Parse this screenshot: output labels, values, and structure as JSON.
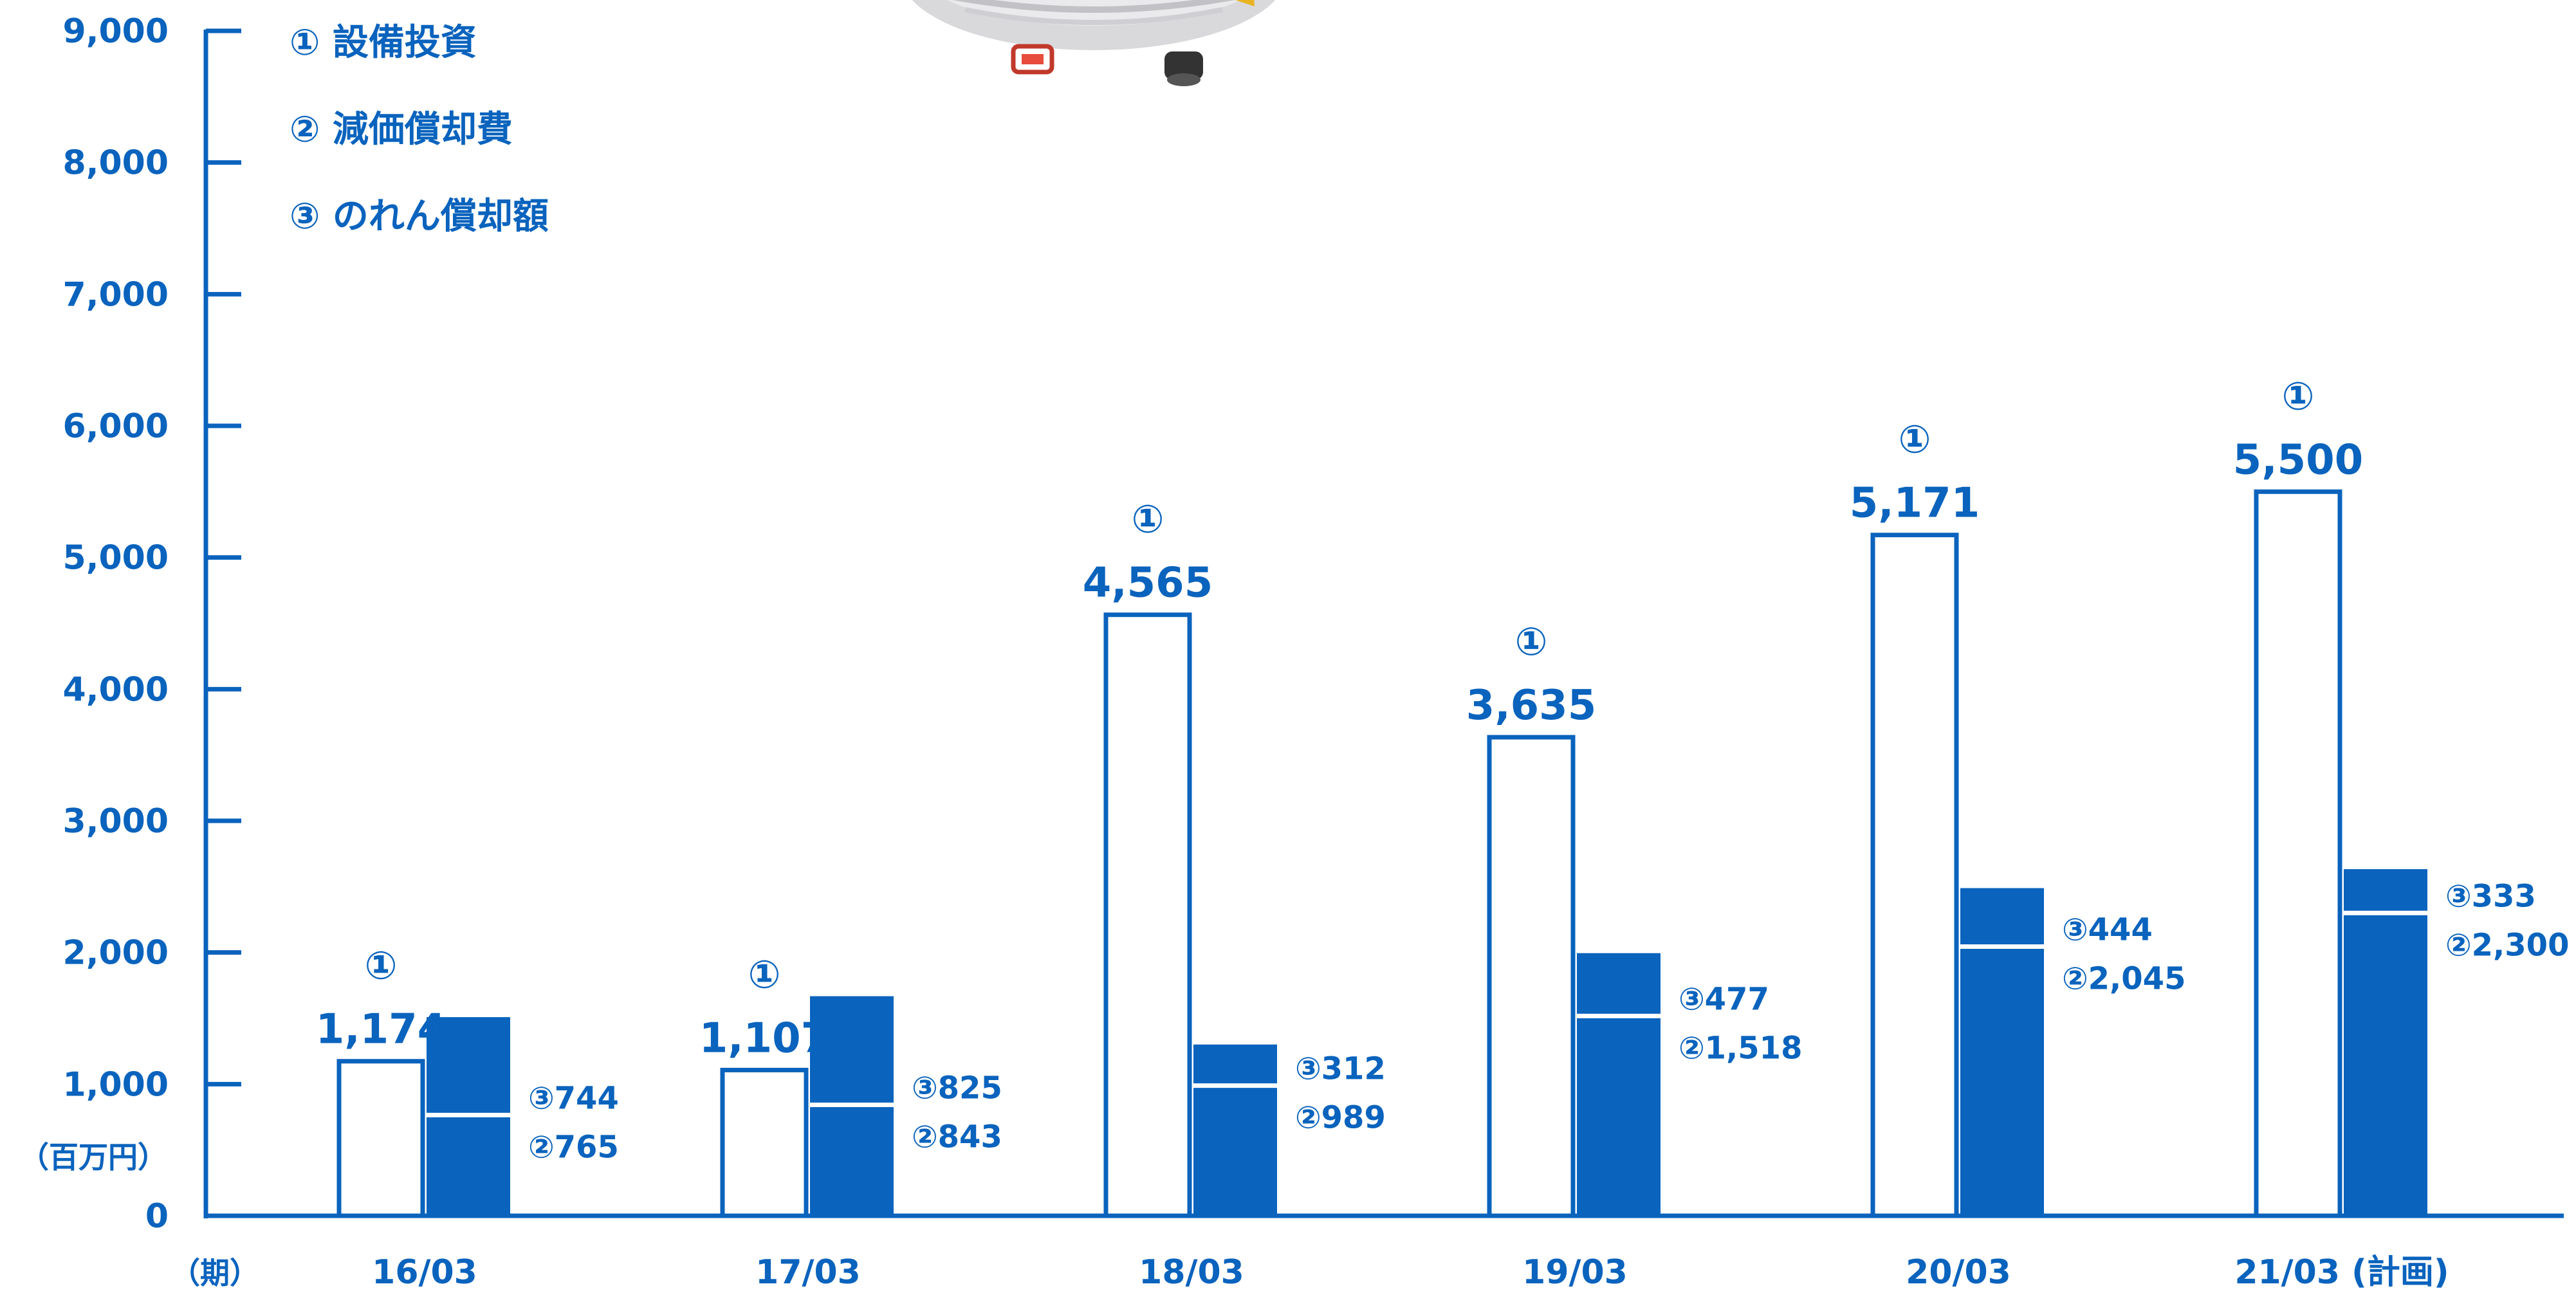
{
  "chart_data": {
    "type": "bar",
    "categories": [
      "16/03",
      "17/03",
      "18/03",
      "19/03",
      "20/03",
      "21/03 (計画)"
    ],
    "series": [
      {
        "name": "① 設備投資",
        "marker": "①",
        "values": [
          1174,
          1107,
          4565,
          3635,
          5171,
          5500
        ]
      },
      {
        "name": "② 減価償却費",
        "marker": "②",
        "values": [
          765,
          843,
          989,
          1518,
          2045,
          2300
        ]
      },
      {
        "name": "③ のれん償却額",
        "marker": "③",
        "values": [
          744,
          825,
          312,
          477,
          444,
          333
        ]
      }
    ],
    "stacked_series": [
      "② 減価償却費",
      "③ のれん償却額"
    ],
    "value_labels": {
      "capex": [
        "1,174",
        "1,107",
        "4,565",
        "3,635",
        "5,171",
        "5,500"
      ],
      "depreciation": [
        "②765",
        "②843",
        "②989",
        "②1,518",
        "②2,045",
        "②2,300"
      ],
      "goodwill": [
        "③744",
        "③825",
        "③312",
        "③477",
        "③444",
        "③333"
      ]
    },
    "ylim": [
      0,
      9000
    ],
    "yticks": [
      0,
      1000,
      2000,
      3000,
      4000,
      5000,
      6000,
      7000,
      8000,
      9000
    ],
    "ytick_labels": [
      "0",
      "1,000",
      "2,000",
      "3,000",
      "4,000",
      "5,000",
      "6,000",
      "7,000",
      "8,000",
      "9,000"
    ],
    "ylabel": "（百万円）",
    "xlabel": "（期）",
    "legend": [
      "① 設備投資",
      "② 減価償却費",
      "③ のれん償却額"
    ],
    "legend_position": "top-left",
    "grid": false,
    "colors": {
      "primary": "#0a63bd",
      "hollow_fill": "#ffffff",
      "divider": "#ffffff"
    },
    "decoration": "airship-illustration"
  }
}
